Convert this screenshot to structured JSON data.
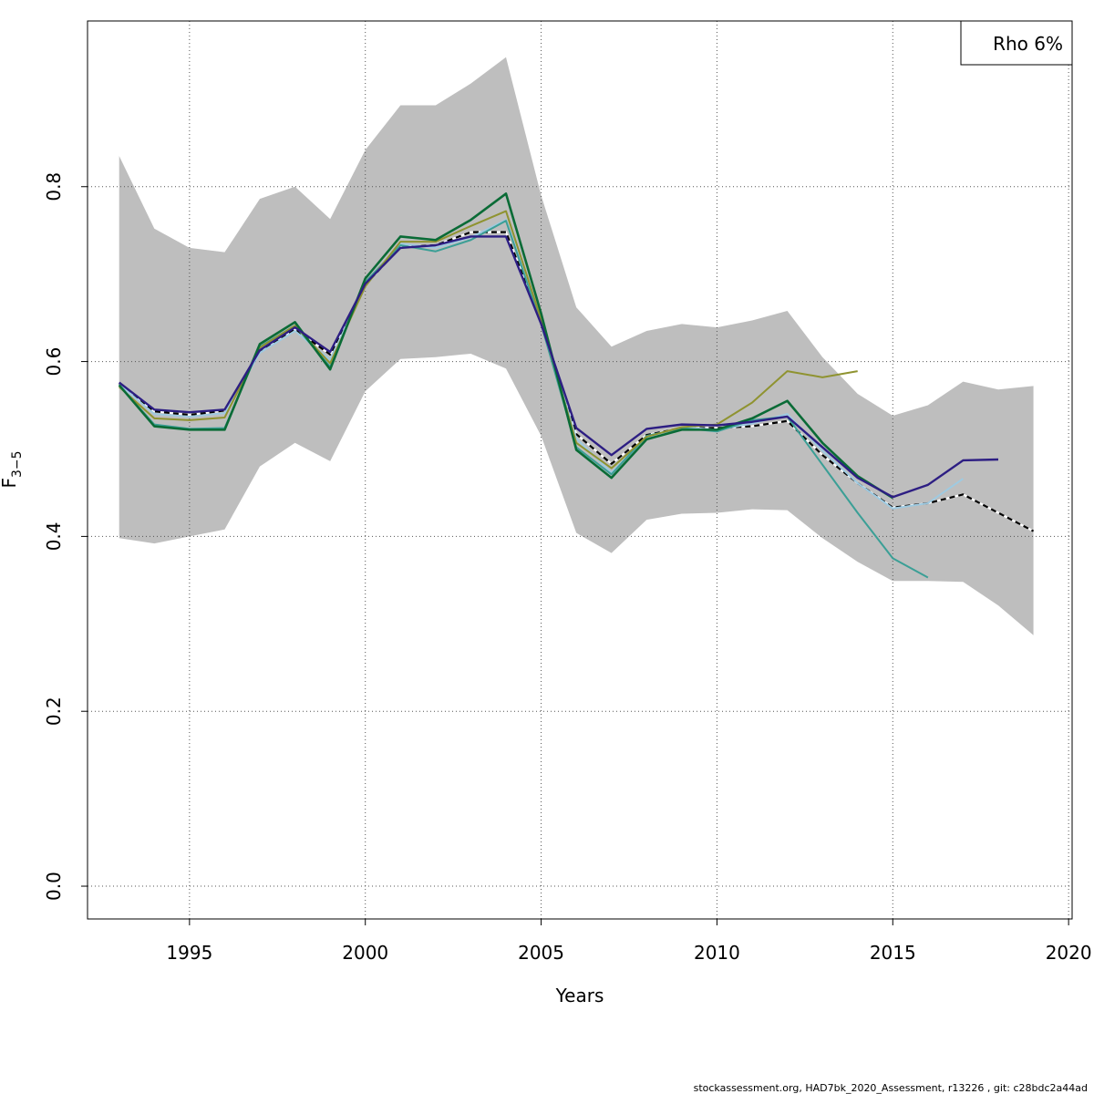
{
  "chart_data": {
    "type": "line",
    "xlabel": "Years",
    "ylabel_main": "F",
    "ylabel_sub": "3−5",
    "xlim": [
      1992.1,
      2020.1
    ],
    "ylim": [
      -0.0375,
      0.9895
    ],
    "x_ticks": [
      1995,
      2000,
      2005,
      2010,
      2015,
      2020
    ],
    "x_tick_labels": [
      "1995",
      "2000",
      "2005",
      "2010",
      "2015",
      "2020"
    ],
    "y_ticks": [
      0.0,
      0.2,
      0.4,
      0.6,
      0.8
    ],
    "y_tick_labels": [
      "0.0",
      "0.2",
      "0.4",
      "0.6",
      "0.8"
    ],
    "grid": true,
    "legend": {
      "position": "top-right",
      "text": "Rho 6%"
    },
    "confidence_band": {
      "color": "#bebebe",
      "x": [
        1993,
        1994,
        1995,
        1996,
        1997,
        1998,
        1999,
        2000,
        2001,
        2002,
        2003,
        2004,
        2005,
        2006,
        2007,
        2008,
        2009,
        2010,
        2011,
        2012,
        2013,
        2014,
        2015,
        2016,
        2017,
        2018,
        2019
      ],
      "upper": [
        0.835,
        0.752,
        0.73,
        0.725,
        0.786,
        0.8,
        0.763,
        0.842,
        0.893,
        0.893,
        0.918,
        0.948,
        0.79,
        0.662,
        0.617,
        0.635,
        0.643,
        0.639,
        0.647,
        0.658,
        0.605,
        0.563,
        0.538,
        0.55,
        0.577,
        0.568,
        0.572
      ],
      "lower": [
        0.398,
        0.392,
        0.4,
        0.408,
        0.48,
        0.507,
        0.486,
        0.566,
        0.603,
        0.605,
        0.609,
        0.592,
        0.515,
        0.404,
        0.381,
        0.419,
        0.426,
        0.427,
        0.431,
        0.43,
        0.398,
        0.371,
        0.349,
        0.349,
        0.348,
        0.321,
        0.287
      ]
    },
    "series": [
      {
        "color": "#000000",
        "dashed": true,
        "width": 2.2,
        "x": [
          1993,
          1994,
          1995,
          1996,
          1997,
          1998,
          1999,
          2000,
          2001,
          2002,
          2003,
          2004,
          2005,
          2006,
          2007,
          2008,
          2009,
          2010,
          2011,
          2012,
          2013,
          2014,
          2015,
          2016,
          2017,
          2018,
          2019
        ],
        "values": [
          0.575,
          0.543,
          0.539,
          0.544,
          0.611,
          0.637,
          0.608,
          0.688,
          0.731,
          0.733,
          0.748,
          0.748,
          0.645,
          0.517,
          0.483,
          0.516,
          0.524,
          0.524,
          0.526,
          0.532,
          0.493,
          0.461,
          0.433,
          0.438,
          0.448,
          0.427,
          0.406
        ]
      },
      {
        "color": "#9ecae1",
        "width": 2,
        "x": [
          1993,
          1994,
          1995,
          1996,
          1997,
          1998,
          1999,
          2000,
          2001,
          2002,
          2003,
          2004,
          2005,
          2006,
          2007,
          2008,
          2009,
          2010,
          2011,
          2012,
          2013,
          2014,
          2015,
          2016,
          2017
        ],
        "values": [
          0.574,
          0.54,
          0.537,
          0.541,
          0.61,
          0.635,
          0.602,
          0.688,
          0.735,
          0.73,
          0.742,
          0.762,
          0.647,
          0.512,
          0.473,
          0.513,
          0.525,
          0.522,
          0.529,
          0.54,
          0.498,
          0.461,
          0.432,
          0.438,
          0.466
        ]
      },
      {
        "color": "#3b9f96",
        "width": 2,
        "x": [
          1993,
          1994,
          1995,
          1996,
          1997,
          1998,
          1999,
          2000,
          2001,
          2002,
          2003,
          2004,
          2005,
          2006,
          2007,
          2008,
          2009,
          2010,
          2011,
          2012,
          2013,
          2014,
          2015,
          2016
        ],
        "values": [
          0.573,
          0.528,
          0.523,
          0.524,
          0.617,
          0.641,
          0.594,
          0.691,
          0.733,
          0.726,
          0.739,
          0.761,
          0.643,
          0.502,
          0.471,
          0.515,
          0.524,
          0.52,
          0.533,
          0.537,
          0.482,
          0.427,
          0.375,
          0.353
        ]
      },
      {
        "color": "#8f9330",
        "width": 2,
        "x": [
          1993,
          1994,
          1995,
          1996,
          1997,
          1998,
          1999,
          2000,
          2001,
          2002,
          2003,
          2004,
          2005,
          2006,
          2007,
          2008,
          2009,
          2010,
          2011,
          2012,
          2013,
          2014
        ],
        "values": [
          0.571,
          0.535,
          0.533,
          0.536,
          0.616,
          0.641,
          0.598,
          0.686,
          0.737,
          0.737,
          0.755,
          0.772,
          0.648,
          0.507,
          0.478,
          0.514,
          0.525,
          0.528,
          0.553,
          0.589,
          0.582,
          0.589
        ]
      },
      {
        "color": "#0a6b36",
        "width": 2.6,
        "x": [
          1993,
          1994,
          1995,
          1996,
          1997,
          1998,
          1999,
          2000,
          2001,
          2002,
          2003,
          2004,
          2005,
          2006,
          2007,
          2008,
          2009,
          2010,
          2011,
          2012,
          2013,
          2014,
          2015
        ],
        "values": [
          0.573,
          0.526,
          0.522,
          0.522,
          0.62,
          0.645,
          0.591,
          0.695,
          0.743,
          0.739,
          0.762,
          0.792,
          0.655,
          0.499,
          0.467,
          0.511,
          0.522,
          0.522,
          0.535,
          0.555,
          0.507,
          0.469,
          0.444
        ]
      },
      {
        "color": "#2d1e83",
        "width": 2.4,
        "x": [
          1993,
          1994,
          1995,
          1996,
          1997,
          1998,
          1999,
          2000,
          2001,
          2002,
          2003,
          2004,
          2005,
          2006,
          2007,
          2008,
          2009,
          2010,
          2011,
          2012,
          2013,
          2014,
          2015,
          2016,
          2017,
          2018
        ],
        "values": [
          0.576,
          0.545,
          0.542,
          0.545,
          0.613,
          0.639,
          0.611,
          0.689,
          0.73,
          0.733,
          0.743,
          0.743,
          0.643,
          0.524,
          0.493,
          0.523,
          0.528,
          0.527,
          0.531,
          0.537,
          0.502,
          0.467,
          0.445,
          0.459,
          0.487,
          0.488
        ]
      }
    ]
  },
  "footer": "stockassessment.org, HAD7bk_2020_Assessment, r13226 , git: c28bdc2a44ad"
}
